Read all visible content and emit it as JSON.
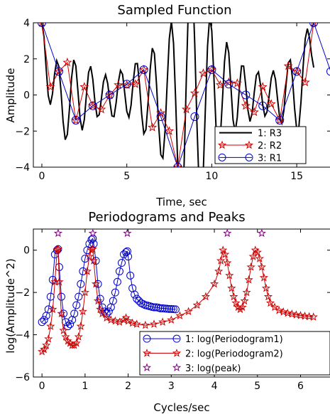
{
  "chart_data": [
    {
      "type": "line",
      "title": "Sampled Function",
      "xlabel": "Time, sec",
      "ylabel": "Amplitude",
      "xlim": [
        -0.5,
        17
      ],
      "ylim": [
        -4,
        4
      ],
      "xticks": [
        0,
        5,
        10,
        15
      ],
      "yticks": [
        -4,
        -2,
        0,
        2,
        4
      ],
      "grid": false,
      "legend_position": "bottom-right",
      "series": [
        {
          "name": "1: R3",
          "color": "#000000",
          "marker": "none",
          "x": [
            0,
            0.125,
            0.25,
            0.375,
            0.5,
            0.625,
            0.75,
            0.875,
            1,
            1.125,
            1.25,
            1.375,
            1.5,
            1.625,
            1.75,
            1.875,
            2,
            2.125,
            2.25,
            2.375,
            2.5,
            2.625,
            2.75,
            2.875,
            3,
            3.125,
            3.25,
            3.375,
            3.5,
            3.625,
            3.75,
            3.875,
            4,
            4.125,
            4.25,
            4.375,
            4.5,
            4.625,
            4.75,
            4.875,
            5,
            5.125,
            5.25,
            5.375,
            5.5,
            5.625,
            5.75,
            5.875,
            6,
            6.125,
            6.25,
            6.375,
            6.5,
            6.625,
            6.75,
            6.875,
            7,
            7.125,
            7.25,
            7.375,
            7.5,
            7.625,
            7.75,
            7.875,
            8,
            8.125,
            8.25,
            8.375,
            8.5,
            8.625,
            8.75,
            8.875,
            9,
            9.125,
            9.25,
            9.375,
            9.5,
            9.625,
            9.75,
            9.875,
            10,
            10.125,
            10.25,
            10.375,
            10.5,
            10.625,
            10.75,
            10.875,
            11,
            11.125,
            11.25,
            11.375,
            11.5,
            11.625,
            11.75,
            11.875,
            12,
            12.125,
            12.25,
            12.375,
            12.5,
            12.625,
            12.75,
            12.875,
            13,
            13.125,
            13.25,
            13.375,
            13.5,
            13.625,
            13.75,
            13.875,
            14,
            14.125,
            14.25,
            14.375,
            14.5,
            14.625,
            14.75,
            14.875,
            15,
            15.125,
            15.25,
            15.375,
            15.5,
            15.625,
            15.75,
            15.875,
            16
          ],
          "values": [
            4,
            3.22,
            1.52,
            -0.03,
            -0.54,
            0.06,
            1.17,
            1.9,
            1.58,
            0.23,
            -1.47,
            -2.48,
            -2.19,
            -0.76,
            0.95,
            1.94,
            1.61,
            0.2,
            -1.31,
            -1.96,
            -1.36,
            0.03,
            1.25,
            1.59,
            0.86,
            -0.38,
            -1.2,
            -1.1,
            -0.24,
            0.73,
            1.12,
            0.64,
            -0.35,
            -1.16,
            -1.2,
            -0.41,
            0.7,
            1.36,
            1.14,
            0.13,
            -0.91,
            -1.24,
            -0.57,
            0.73,
            1.73,
            1.74,
            0.57,
            -1.07,
            -2.15,
            -1.92,
            -0.44,
            1.42,
            2.59,
            2.29,
            0.56,
            -1.69,
            -3.31,
            -3.5,
            -2.0,
            0.64,
            3.11,
            4.09,
            2.86,
            -0.29,
            -4,
            -6.54,
            -6.6,
            -3.74,
            0.81,
            4.99,
            7.08,
            6.18,
            2.78,
            -1.54,
            -4.93,
            -5.99,
            -4.26,
            -0.72,
            2.69,
            4.32,
            3.56,
            1.02,
            -1.76,
            -3.12,
            -2.44,
            -0.33,
            1.85,
            2.93,
            2.34,
            0.48,
            -1.37,
            -2.06,
            -1.25,
            0.39,
            1.61,
            1.6,
            0.51,
            -0.82,
            -1.47,
            -1.01,
            0.14,
            1.09,
            1.27,
            0.52,
            -0.55,
            -1.17,
            -0.94,
            -0.06,
            0.93,
            1.36,
            0.86,
            -0.26,
            -1.29,
            -1.56,
            -0.82,
            0.61,
            1.78,
            1.94,
            0.92,
            -0.75,
            -1.92,
            -1.78,
            -0.39,
            1.55,
            3.11,
            3.67,
            3.18,
            2.2,
            1.52
          ]
        },
        {
          "name": "2: R2",
          "color": "#cc0000",
          "marker": "star",
          "x": [
            0,
            0.5,
            1,
            1.5,
            2,
            2.5,
            3,
            3.5,
            4,
            4.5,
            5,
            5.5,
            6,
            6.5,
            7,
            7.5,
            8,
            8.5,
            9,
            9.5,
            10,
            10.5,
            11,
            11.5,
            12,
            12.5,
            13,
            13.5,
            14,
            14.5,
            15,
            15.5,
            16
          ],
          "values": [
            4,
            0.45,
            1.3,
            1.8,
            -1.4,
            0.45,
            -0.6,
            -0.8,
            0,
            0.55,
            0.55,
            0.6,
            1.4,
            -1.8,
            -1.0,
            -2.0,
            -4.0,
            -0.8,
            0.1,
            1.2,
            1.4,
            0.55,
            0.7,
            0.65,
            -0.6,
            -0.95,
            0.45,
            -0.5,
            -1.4,
            1.6,
            1.3,
            0.7,
            4.0
          ]
        },
        {
          "name": "3: R1",
          "color": "#0000cc",
          "marker": "circle",
          "x": [
            0,
            1,
            2,
            3,
            4,
            5,
            6,
            7,
            8,
            9,
            10,
            11,
            12,
            13,
            14,
            15,
            16,
            17
          ],
          "values": [
            4,
            1.3,
            -1.4,
            -0.6,
            0,
            0.6,
            1.4,
            -1.2,
            -4.0,
            -1.2,
            1.4,
            0.6,
            0,
            -0.6,
            -1.4,
            1.3,
            4.0,
            1.3
          ]
        }
      ]
    },
    {
      "type": "line",
      "title": "Periodograms and Peaks",
      "xlabel": "Cycles/sec",
      "ylabel": "log(Amplitude^2)",
      "xlim": [
        -0.2,
        6.7
      ],
      "ylim": [
        -6,
        1
      ],
      "xticks": [
        0,
        1,
        2,
        3,
        4,
        5,
        6
      ],
      "yticks": [
        -6,
        -4,
        -2,
        0
      ],
      "grid": false,
      "legend_position": "bottom-right",
      "series": [
        {
          "name": "1: log(Periodogram1)",
          "color": "#0000cc",
          "marker": "circle",
          "x": [
            0,
            0.05,
            0.1,
            0.15,
            0.2,
            0.25,
            0.3,
            0.35,
            0.375,
            0.4,
            0.45,
            0.5,
            0.55,
            0.6,
            0.65,
            0.7,
            0.75,
            0.8,
            0.85,
            0.9,
            0.95,
            1,
            1.05,
            1.1,
            1.15,
            1.18,
            1.2,
            1.25,
            1.3,
            1.35,
            1.4,
            1.45,
            1.5,
            1.55,
            1.6,
            1.65,
            1.7,
            1.75,
            1.8,
            1.85,
            1.9,
            1.95,
            1.98,
            2,
            2.05,
            2.1,
            2.15,
            2.2,
            2.25,
            2.3,
            2.35,
            2.4,
            2.45,
            2.5,
            2.55,
            2.6,
            2.65,
            2.7,
            2.75,
            2.8,
            2.85,
            2.9,
            2.95,
            3,
            3.05,
            3.1
          ],
          "values": [
            -3.4,
            -3.3,
            -3.1,
            -2.8,
            -2.2,
            -1.4,
            -0.2,
            0.0,
            0.05,
            -0.8,
            -2.2,
            -3.0,
            -3.4,
            -3.6,
            -3.5,
            -3.3,
            -3.0,
            -2.6,
            -2.2,
            -1.6,
            -1.0,
            -0.4,
            0.0,
            0.3,
            0.5,
            0.55,
            0.3,
            -0.5,
            -1.6,
            -2.3,
            -2.7,
            -2.9,
            -3.0,
            -2.9,
            -2.7,
            -2.4,
            -2.0,
            -1.5,
            -1.0,
            -0.6,
            -0.2,
            -0.1,
            -0.05,
            -0.3,
            -1.2,
            -1.8,
            -2.1,
            -2.3,
            -2.4,
            -2.5,
            -2.55,
            -2.6,
            -2.62,
            -2.65,
            -2.68,
            -2.7,
            -2.7,
            -2.72,
            -2.75,
            -2.75,
            -2.76,
            -2.77,
            -2.78,
            -2.78,
            -2.79,
            -2.8
          ]
        },
        {
          "name": "2: log(Periodogram2)",
          "color": "#cc0000",
          "marker": "star",
          "x": [
            0,
            0.05,
            0.1,
            0.15,
            0.2,
            0.25,
            0.3,
            0.35,
            0.375,
            0.4,
            0.45,
            0.5,
            0.55,
            0.6,
            0.65,
            0.7,
            0.75,
            0.8,
            0.85,
            0.9,
            0.95,
            1,
            1.05,
            1.1,
            1.15,
            1.18,
            1.2,
            1.25,
            1.3,
            1.35,
            1.4,
            1.5,
            1.6,
            1.7,
            1.8,
            1.9,
            1.95,
            2,
            2.1,
            2.2,
            2.4,
            2.6,
            2.8,
            3,
            3.2,
            3.4,
            3.6,
            3.8,
            4,
            4.1,
            4.15,
            4.2,
            4.25,
            4.3,
            4.35,
            4.4,
            4.45,
            4.5,
            4.55,
            4.6,
            4.65,
            4.7,
            4.75,
            4.8,
            4.85,
            4.9,
            4.95,
            5,
            5.05,
            5.1,
            5.15,
            5.2,
            5.25,
            5.3,
            5.4,
            5.5,
            5.6,
            5.7,
            5.8,
            5.9,
            6,
            6.1,
            6.2,
            6.3
          ],
          "values": [
            -4.8,
            -4.7,
            -4.5,
            -4.2,
            -3.6,
            -2.8,
            -1.5,
            0.0,
            0.05,
            -1.5,
            -3.0,
            -3.8,
            -4.1,
            -4.3,
            -4.4,
            -4.5,
            -4.5,
            -4.4,
            -4.1,
            -3.6,
            -2.9,
            -2.0,
            -1.0,
            -0.3,
            0.0,
            0.05,
            -0.5,
            -1.6,
            -2.4,
            -2.8,
            -3.0,
            -3.2,
            -3.3,
            -3.35,
            -3.4,
            -3.3,
            -3.2,
            -3.35,
            -3.45,
            -3.5,
            -3.55,
            -3.5,
            -3.4,
            -3.3,
            -3.1,
            -2.9,
            -2.6,
            -2.2,
            -1.6,
            -1.0,
            -0.5,
            0.0,
            -0.2,
            -0.6,
            -1.2,
            -1.8,
            -2.2,
            -2.5,
            -2.7,
            -2.8,
            -2.7,
            -2.4,
            -2.0,
            -1.4,
            -0.8,
            -0.3,
            0.0,
            -0.1,
            -0.4,
            -0.8,
            -1.3,
            -1.8,
            -2.2,
            -2.5,
            -2.7,
            -2.85,
            -2.92,
            -2.98,
            -3.02,
            -3.06,
            -3.09,
            -3.12,
            -3.14,
            -3.16
          ]
        },
        {
          "name": "3: log(peak)",
          "color": "#800080",
          "marker": "star",
          "line": "none",
          "x": [
            0.375,
            1.18,
            1.98,
            4.3,
            5.1
          ],
          "values": [
            0.8,
            0.8,
            0.8,
            0.8,
            0.8
          ]
        }
      ]
    }
  ]
}
